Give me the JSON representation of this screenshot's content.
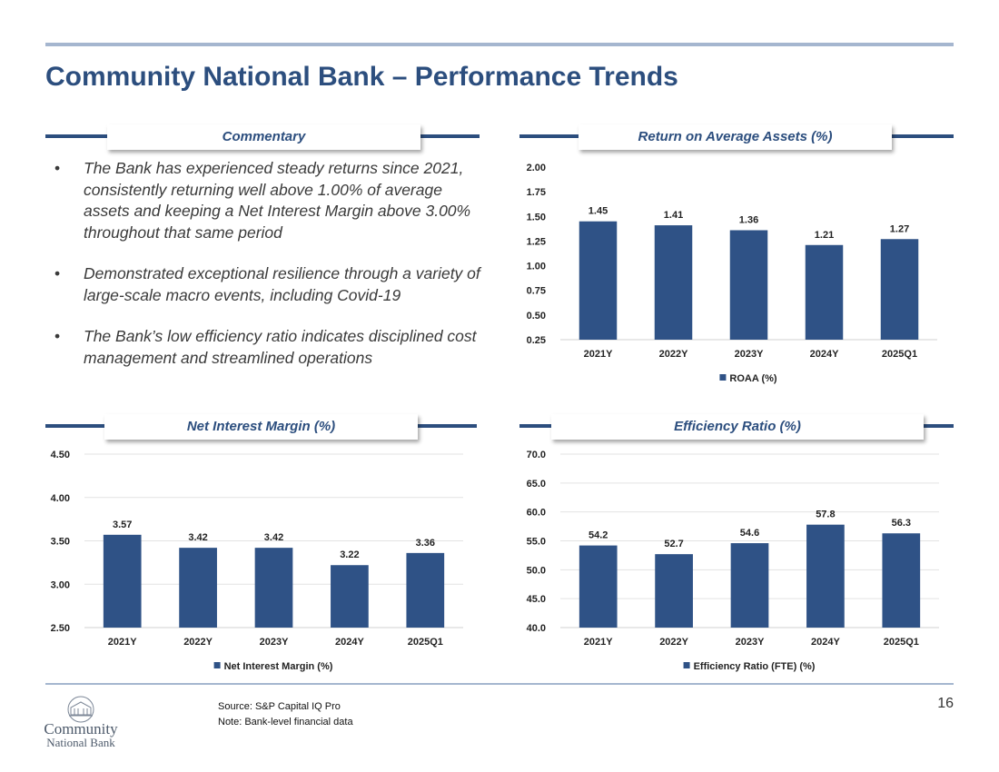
{
  "title": "Community National Bank – Performance Trends",
  "commentary": {
    "heading": "Commentary",
    "bullet": "•",
    "bullets": [
      "The Bank has experienced steady returns since 2021, consistently returning well above 1.00% of average assets and keeping a Net Interest Margin above 3.00% throughout that same period",
      "Demonstrated exceptional resilience through a variety of large-scale macro events, including Covid-19",
      "The Bank’s low efficiency ratio indicates disciplined cost management and streamlined operations"
    ]
  },
  "colors": {
    "accent": "#2c4e7e",
    "bar": "#2f5286",
    "rule_light": "#a5b6cf",
    "grid": "#e3e3e3"
  },
  "chart_data": [
    {
      "id": "roaa",
      "type": "bar",
      "title": "Return on Average Assets (%)",
      "categories": [
        "2021Y",
        "2022Y",
        "2023Y",
        "2024Y",
        "2025Q1"
      ],
      "series": [
        {
          "name": "ROAA (%)",
          "values": [
            1.45,
            1.41,
            1.36,
            1.21,
            1.27
          ]
        }
      ],
      "ylim": [
        0.25,
        2.0
      ],
      "yticks": [
        "2.00",
        "1.75",
        "1.50",
        "1.25",
        "1.00",
        "0.75",
        "0.50",
        "0.25"
      ],
      "data_labels": [
        "1.45",
        "1.41",
        "1.36",
        "1.21",
        "1.27"
      ],
      "grid": false,
      "legend": "bottom-center"
    },
    {
      "id": "nim",
      "type": "bar",
      "title": "Net Interest Margin (%)",
      "categories": [
        "2021Y",
        "2022Y",
        "2023Y",
        "2024Y",
        "2025Q1"
      ],
      "series": [
        {
          "name": "Net Interest Margin (%)",
          "values": [
            3.57,
            3.42,
            3.42,
            3.22,
            3.36
          ]
        }
      ],
      "ylim": [
        2.5,
        4.5
      ],
      "yticks": [
        "4.50",
        "4.00",
        "3.50",
        "3.00",
        "2.50"
      ],
      "data_labels": [
        "3.57",
        "3.42",
        "3.42",
        "3.22",
        "3.36"
      ],
      "grid": true,
      "legend": "bottom-center"
    },
    {
      "id": "eff",
      "type": "bar",
      "title": "Efficiency Ratio (%)",
      "categories": [
        "2021Y",
        "2022Y",
        "2023Y",
        "2024Y",
        "2025Q1"
      ],
      "series": [
        {
          "name": "Efficiency Ratio (FTE) (%)",
          "values": [
            54.2,
            52.7,
            54.6,
            57.8,
            56.3
          ]
        }
      ],
      "ylim": [
        40.0,
        70.0
      ],
      "yticks": [
        "70.0",
        "65.0",
        "60.0",
        "55.0",
        "50.0",
        "45.0",
        "40.0"
      ],
      "data_labels": [
        "54.2",
        "52.7",
        "54.6",
        "57.8",
        "56.3"
      ],
      "grid": true,
      "legend": "bottom-center"
    }
  ],
  "footer": {
    "source": "Source: S&P Capital IQ Pro",
    "note": "Note: Bank-level financial data",
    "page_number": "16",
    "logo": {
      "line1": "Community",
      "line2": "National Bank",
      "icon": "bank-building-icon"
    }
  }
}
